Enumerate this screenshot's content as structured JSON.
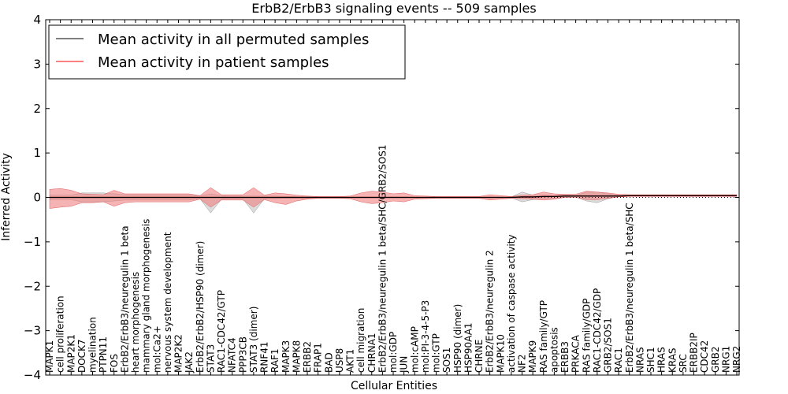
{
  "chart_data": {
    "type": "line",
    "title": "ErbB2/ErbB3 signaling events -- 509 samples",
    "xlabel": "Cellular Entities",
    "ylabel": "Inferred Activity",
    "ylim": [
      -4,
      4
    ],
    "yticks": [
      -4,
      -3,
      -2,
      -1,
      0,
      1,
      2,
      3,
      4
    ],
    "ytick_labels": [
      "−4",
      "−3",
      "−2",
      "−1",
      "0",
      "1",
      "2",
      "3",
      "4"
    ],
    "legend_location": "top-left",
    "categories": [
      "MAPK1",
      "cell proliferation",
      "MAP2K1",
      "DOCK7",
      "myelination",
      "PTPN11",
      "FOS",
      "ErbB2/ErbB3/neuregulin 1 beta",
      "heart morphogenesis",
      "mammary gland morphogenesis",
      "mol:Ca2+",
      "nervous system development",
      "MAP2K2",
      "JAK2",
      "ErbB2/ErbB2/HSP90 (dimer)",
      "STAT3",
      "RAC1-CDC42/GTP",
      "NFATC4",
      "PPP3CB",
      "STAT3 (dimer)",
      "RNF41",
      "RAF1",
      "MAPK3",
      "MAPK8",
      "ERBB2",
      "FRAP1",
      "BAD",
      "USP8",
      "AKT1",
      "cell migration",
      "CHRNA1",
      "ErbB2/ErbB3/neuregulin 1 beta/SHC/GRB2/SOS1",
      "mol:GDP",
      "JUN",
      "mol:cAMP",
      "mol:PI-3-4-5-P3",
      "mol:GTP",
      "SOS1",
      "HSP90 (dimer)",
      "HSP90AA1",
      "CHRNE",
      "ErbB2/ErbB3/neuregulin 2",
      "MAPK10",
      "activation of caspase activity",
      "NF2",
      "MAPK9",
      "RAS family/GTP",
      "apoptosis",
      "ERBB3",
      "PRKACA",
      "RAS family/GDP",
      "RAC1-CDC42/GDP",
      "GRB2/SOS1",
      "RAC1",
      "ErbB2/ErbB3/neuregulin 1 beta/SHC",
      "NRAS",
      "SHC1",
      "HRAS",
      "KRAS",
      "SRC",
      "ERBB2IP",
      "CDC42",
      "GRB2",
      "NRG1",
      "NRG2"
    ],
    "series": [
      {
        "name": "Mean activity in all permuted samples",
        "color": "#000000",
        "values": [
          0,
          0,
          0,
          0,
          0,
          0,
          0,
          0,
          0,
          0,
          0,
          0,
          0,
          0,
          0,
          0,
          0,
          0,
          0,
          0,
          0,
          0,
          0,
          0,
          0,
          0,
          0,
          0,
          0,
          0,
          0,
          0,
          0,
          0,
          0,
          0,
          0,
          0,
          0,
          0,
          0,
          0,
          0,
          0,
          0.01,
          0.01,
          0.02,
          0.02,
          0.03,
          0.03,
          0.03,
          0.03,
          0.03,
          0.03,
          0.04,
          0.04,
          0.04,
          0.04,
          0.04,
          0.04,
          0.04,
          0.04,
          0.04,
          0.04,
          0.04
        ],
        "band_upper": [
          0.05,
          0.05,
          0.05,
          0.1,
          0.1,
          0.1,
          0.08,
          0.06,
          0.06,
          0.06,
          0.06,
          0.06,
          0.06,
          0.06,
          0.03,
          0.08,
          0.04,
          0.03,
          0.03,
          0.03,
          0.03,
          0.03,
          0.02,
          0.02,
          0.02,
          0.01,
          0.01,
          0.01,
          0.01,
          0.01,
          0.01,
          0.01,
          0.01,
          0.01,
          0.01,
          0.01,
          0.01,
          0.01,
          0.01,
          0.01,
          0.01,
          0.01,
          0.01,
          0.01,
          0.12,
          0.05,
          0.06,
          0.04,
          0.06,
          0.04,
          0.12,
          0.12,
          0.08,
          0.05,
          0.05,
          0.05,
          0.05,
          0.05,
          0.05,
          0.05,
          0.05,
          0.05,
          0.05,
          0.05,
          0.05
        ],
        "band_lower": [
          -0.05,
          -0.05,
          -0.05,
          -0.1,
          -0.1,
          -0.1,
          -0.08,
          -0.06,
          -0.06,
          -0.06,
          -0.06,
          -0.06,
          -0.06,
          -0.06,
          -0.03,
          -0.35,
          -0.04,
          -0.03,
          -0.03,
          -0.35,
          -0.03,
          -0.03,
          -0.02,
          -0.02,
          -0.02,
          -0.01,
          -0.01,
          -0.01,
          -0.01,
          -0.01,
          -0.01,
          -0.01,
          -0.01,
          -0.01,
          -0.01,
          -0.01,
          -0.01,
          -0.01,
          -0.01,
          -0.01,
          -0.01,
          -0.01,
          -0.01,
          -0.01,
          -0.1,
          -0.05,
          -0.02,
          -0.03,
          0.01,
          0.01,
          -0.08,
          -0.12,
          -0.03,
          0.02,
          0.03,
          0.03,
          0.03,
          0.03,
          0.03,
          0.03,
          0.03,
          0.03,
          0.03,
          0.03,
          0.03
        ]
      },
      {
        "name": "Mean activity in patient samples",
        "color": "#ff0000",
        "values": [
          0,
          0,
          0,
          0,
          0,
          0,
          0,
          0,
          0,
          0,
          0,
          0,
          0,
          0,
          0,
          0,
          0,
          0,
          0,
          0,
          0,
          0,
          0,
          0,
          0,
          0,
          0,
          0,
          0,
          0,
          0,
          0,
          0,
          0,
          0,
          0,
          0,
          0,
          0,
          0,
          0,
          0,
          0,
          0,
          0.01,
          0.01,
          0.02,
          0.02,
          0.03,
          0.03,
          0.03,
          0.03,
          0.03,
          0.03,
          0.04,
          0.04,
          0.04,
          0.04,
          0.04,
          0.04,
          0.04,
          0.04,
          0.04,
          0.04,
          0.04
        ],
        "band_upper": [
          0.18,
          0.2,
          0.16,
          0.08,
          0.07,
          0.06,
          0.16,
          0.08,
          0.08,
          0.08,
          0.08,
          0.08,
          0.08,
          0.08,
          0.04,
          0.22,
          0.06,
          0.06,
          0.06,
          0.22,
          0.05,
          0.1,
          0.08,
          0.05,
          0.03,
          0.02,
          0.02,
          0.02,
          0.03,
          0.1,
          0.14,
          0.12,
          0.08,
          0.1,
          0.04,
          0.03,
          0.02,
          0.02,
          0.02,
          0.02,
          0.02,
          0.06,
          0.04,
          0.02,
          0.05,
          0.06,
          0.12,
          0.08,
          0.07,
          0.07,
          0.14,
          0.12,
          0.1,
          0.07,
          0.06,
          0.06,
          0.06,
          0.06,
          0.06,
          0.06,
          0.06,
          0.06,
          0.06,
          0.06,
          0.06
        ],
        "band_lower": [
          -0.25,
          -0.22,
          -0.2,
          -0.12,
          -0.12,
          -0.1,
          -0.2,
          -0.12,
          -0.1,
          -0.1,
          -0.1,
          -0.1,
          -0.1,
          -0.1,
          -0.04,
          -0.22,
          -0.06,
          -0.06,
          -0.06,
          -0.22,
          -0.05,
          -0.12,
          -0.16,
          -0.08,
          -0.04,
          -0.02,
          -0.02,
          -0.02,
          -0.03,
          -0.1,
          -0.14,
          -0.12,
          -0.08,
          -0.1,
          -0.04,
          -0.03,
          -0.02,
          -0.02,
          -0.02,
          -0.02,
          -0.02,
          -0.06,
          -0.04,
          -0.02,
          -0.03,
          -0.04,
          -0.06,
          -0.04,
          0.0,
          0.0,
          -0.05,
          -0.05,
          -0.02,
          0.01,
          0.02,
          0.02,
          0.02,
          0.02,
          0.02,
          0.02,
          0.02,
          0.02,
          0.02,
          0.02,
          0.02
        ]
      }
    ]
  }
}
